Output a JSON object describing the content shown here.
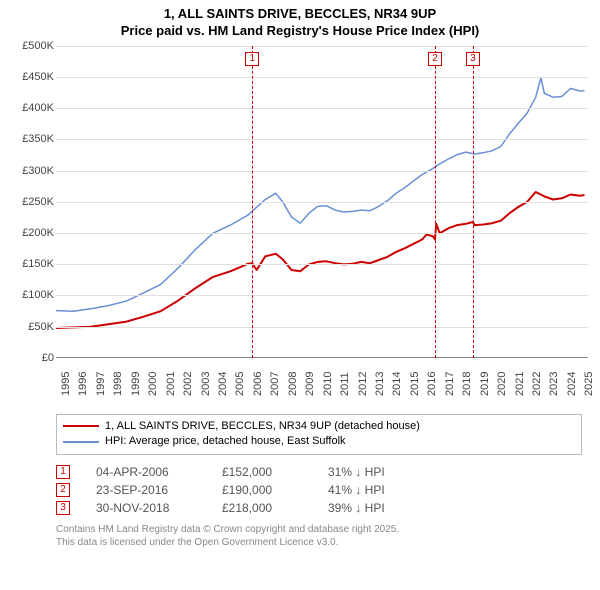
{
  "title_line1": "1, ALL SAINTS DRIVE, BECCLES, NR34 9UP",
  "title_line2": "Price paid vs. HM Land Registry's House Price Index (HPI)",
  "chart": {
    "type": "line",
    "background_color": "#ffffff",
    "grid_color": "#e0e0e0",
    "axis_color": "#888888",
    "label_color": "#444444",
    "label_fontsize": 11,
    "title_fontsize": 13,
    "x_range": [
      1995,
      2025.5
    ],
    "y_range": [
      0,
      500000
    ],
    "y_ticks": [
      0,
      50000,
      100000,
      150000,
      200000,
      250000,
      300000,
      350000,
      400000,
      450000,
      500000
    ],
    "y_tick_labels": [
      "£0",
      "£50K",
      "£100K",
      "£150K",
      "£200K",
      "£250K",
      "£300K",
      "£350K",
      "£400K",
      "£450K",
      "£500K"
    ],
    "x_ticks": [
      1995,
      1996,
      1997,
      1998,
      1999,
      2000,
      2001,
      2002,
      2003,
      2004,
      2005,
      2006,
      2007,
      2008,
      2009,
      2010,
      2011,
      2012,
      2013,
      2014,
      2015,
      2016,
      2017,
      2018,
      2019,
      2020,
      2021,
      2022,
      2023,
      2024,
      2025
    ],
    "series": [
      {
        "name": "property",
        "color": "#cc0000",
        "width": 2,
        "points": [
          [
            1995,
            48000
          ],
          [
            1996,
            49000
          ],
          [
            1997,
            50000
          ],
          [
            1998,
            54000
          ],
          [
            1999,
            58000
          ],
          [
            2000,
            66000
          ],
          [
            2001,
            75000
          ],
          [
            2002,
            92000
          ],
          [
            2003,
            112000
          ],
          [
            2004,
            130000
          ],
          [
            2005,
            139000
          ],
          [
            2006,
            151000
          ],
          [
            2006.25,
            152000
          ],
          [
            2006.5,
            141000
          ],
          [
            2007,
            163000
          ],
          [
            2007.6,
            167000
          ],
          [
            2008,
            158000
          ],
          [
            2008.5,
            141000
          ],
          [
            2009,
            139000
          ],
          [
            2009.5,
            150000
          ],
          [
            2010,
            154000
          ],
          [
            2010.5,
            155000
          ],
          [
            2011,
            152000
          ],
          [
            2011.5,
            150000
          ],
          [
            2012,
            151000
          ],
          [
            2012.5,
            154000
          ],
          [
            2013,
            152000
          ],
          [
            2013.5,
            157000
          ],
          [
            2014,
            162000
          ],
          [
            2014.5,
            170000
          ],
          [
            2015,
            176000
          ],
          [
            2015.5,
            183000
          ],
          [
            2016,
            190000
          ],
          [
            2016.25,
            198000
          ],
          [
            2016.6,
            195000
          ],
          [
            2016.73,
            190000
          ],
          [
            2016.8,
            215000
          ],
          [
            2017,
            200000
          ],
          [
            2017.5,
            208000
          ],
          [
            2018,
            213000
          ],
          [
            2018.5,
            215000
          ],
          [
            2018.9,
            218000
          ],
          [
            2019,
            213000
          ],
          [
            2019.5,
            214000
          ],
          [
            2020,
            216000
          ],
          [
            2020.5,
            220000
          ],
          [
            2021,
            232000
          ],
          [
            2021.5,
            242000
          ],
          [
            2022,
            250000
          ],
          [
            2022.5,
            266000
          ],
          [
            2023,
            259000
          ],
          [
            2023.5,
            254000
          ],
          [
            2024,
            256000
          ],
          [
            2024.5,
            262000
          ],
          [
            2025,
            260000
          ],
          [
            2025.3,
            261000
          ]
        ]
      },
      {
        "name": "hpi",
        "color": "#6a8fd6",
        "width": 1.5,
        "points": [
          [
            1995,
            76000
          ],
          [
            1996,
            75000
          ],
          [
            1997,
            79000
          ],
          [
            1998,
            84000
          ],
          [
            1999,
            91000
          ],
          [
            2000,
            104000
          ],
          [
            2001,
            118000
          ],
          [
            2002,
            144000
          ],
          [
            2003,
            174000
          ],
          [
            2004,
            200000
          ],
          [
            2005,
            213000
          ],
          [
            2006,
            229000
          ],
          [
            2007,
            254000
          ],
          [
            2007.6,
            264000
          ],
          [
            2008,
            250000
          ],
          [
            2008.5,
            226000
          ],
          [
            2009,
            216000
          ],
          [
            2009.5,
            232000
          ],
          [
            2010,
            243000
          ],
          [
            2010.5,
            244000
          ],
          [
            2011,
            237000
          ],
          [
            2011.5,
            234000
          ],
          [
            2012,
            235000
          ],
          [
            2012.5,
            237000
          ],
          [
            2013,
            236000
          ],
          [
            2013.5,
            243000
          ],
          [
            2014,
            252000
          ],
          [
            2014.5,
            264000
          ],
          [
            2015,
            273000
          ],
          [
            2015.5,
            284000
          ],
          [
            2016,
            294000
          ],
          [
            2016.5,
            302000
          ],
          [
            2017,
            311000
          ],
          [
            2017.5,
            319000
          ],
          [
            2018,
            326000
          ],
          [
            2018.5,
            330000
          ],
          [
            2019,
            327000
          ],
          [
            2019.5,
            329000
          ],
          [
            2020,
            332000
          ],
          [
            2020.5,
            339000
          ],
          [
            2021,
            359000
          ],
          [
            2021.5,
            376000
          ],
          [
            2022,
            392000
          ],
          [
            2022.5,
            418000
          ],
          [
            2022.8,
            449000
          ],
          [
            2023,
            424000
          ],
          [
            2023.5,
            418000
          ],
          [
            2024,
            419000
          ],
          [
            2024.5,
            432000
          ],
          [
            2025,
            428000
          ],
          [
            2025.3,
            428000
          ]
        ]
      }
    ],
    "markers": [
      {
        "label": "1",
        "x": 2006.25,
        "color": "#cc0000"
      },
      {
        "label": "2",
        "x": 2016.73,
        "color": "#cc0000"
      },
      {
        "label": "3",
        "x": 2018.9,
        "color": "#cc0000"
      }
    ]
  },
  "legend": {
    "items": [
      {
        "color": "#cc0000",
        "label": "1, ALL SAINTS DRIVE, BECCLES, NR34 9UP (detached house)"
      },
      {
        "color": "#6a8fd6",
        "label": "HPI: Average price, detached house, East Suffolk"
      }
    ]
  },
  "events": [
    {
      "num": "1",
      "date": "04-APR-2006",
      "price": "£152,000",
      "diff": "31% ↓ HPI",
      "border": "#cc0000"
    },
    {
      "num": "2",
      "date": "23-SEP-2016",
      "price": "£190,000",
      "diff": "41% ↓ HPI",
      "border": "#cc0000"
    },
    {
      "num": "3",
      "date": "30-NOV-2018",
      "price": "£218,000",
      "diff": "39% ↓ HPI",
      "border": "#cc0000"
    }
  ],
  "footer_line1": "Contains HM Land Registry data © Crown copyright and database right 2025.",
  "footer_line2": "This data is licensed under the Open Government Licence v3.0."
}
